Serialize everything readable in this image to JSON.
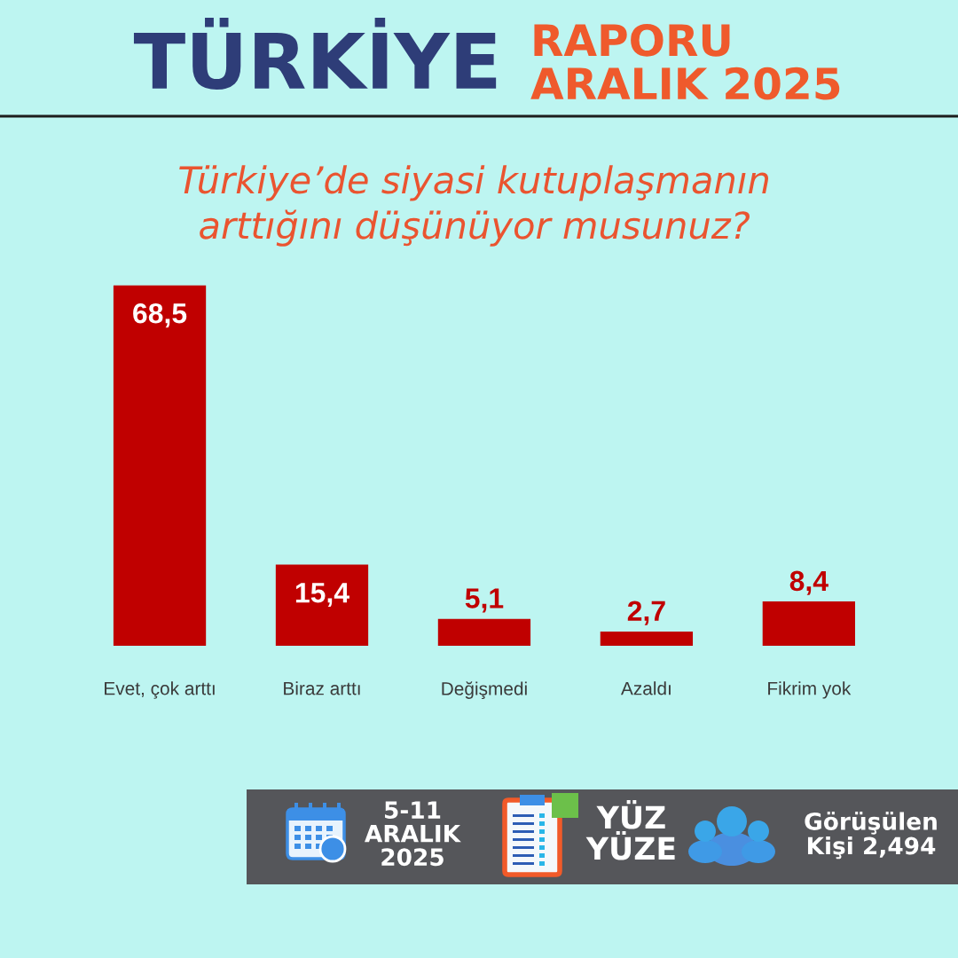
{
  "chart_data": {
    "type": "bar",
    "title": "Türkiye’de siyasi kutuplaşmanın\narttığını düşünüyor musunuz?",
    "categories": [
      "Evet, çok arttı",
      "Biraz arttı",
      "Değişmedi",
      "Azaldı",
      "Fikrim yok"
    ],
    "values": [
      68.5,
      15.4,
      5.1,
      2.7,
      8.4
    ],
    "color": "#c00000",
    "value_labels": [
      "68,5",
      "15,4",
      "5,1",
      "2,7",
      "8,4"
    ],
    "tick_labels": "x",
    "annotations": [
      "TÜRKİYE",
      "RAPORU\nARALIK 2025",
      "5-11\nARALIK\n2025",
      "YÜZ\nYÜZE",
      "Görüşülen\nKişi 2,494"
    ]
  }
}
